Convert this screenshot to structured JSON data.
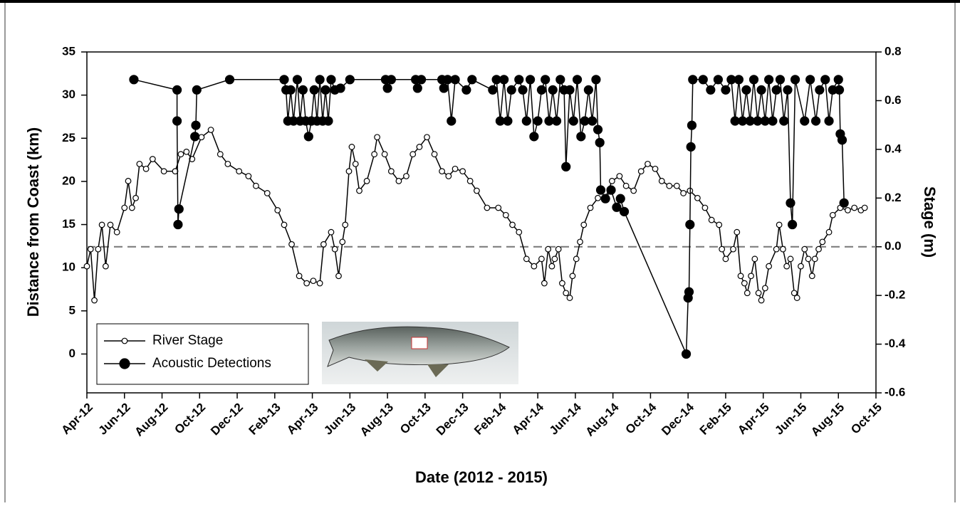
{
  "chart_data": {
    "type": "line",
    "x_label": "Date (2012 - 2015)",
    "y_label": "Distance from Coast (km)",
    "y2_label": "Stage (m)",
    "xlim": [
      0,
      42
    ],
    "xticks": [
      {
        "value": 0,
        "label": "Apr-12"
      },
      {
        "value": 2,
        "label": "Jun-12"
      },
      {
        "value": 4,
        "label": "Aug-12"
      },
      {
        "value": 6,
        "label": "Oct-12"
      },
      {
        "value": 8,
        "label": "Dec-12"
      },
      {
        "value": 10,
        "label": "Feb-13"
      },
      {
        "value": 12,
        "label": "Apr-13"
      },
      {
        "value": 14,
        "label": "Jun-13"
      },
      {
        "value": 16,
        "label": "Aug-13"
      },
      {
        "value": 18,
        "label": "Oct-13"
      },
      {
        "value": 20,
        "label": "Dec-13"
      },
      {
        "value": 22,
        "label": "Feb-14"
      },
      {
        "value": 24,
        "label": "Apr-14"
      },
      {
        "value": 26,
        "label": "Jun-14"
      },
      {
        "value": 28,
        "label": "Aug-14"
      },
      {
        "value": 30,
        "label": "Oct-14"
      },
      {
        "value": 32,
        "label": "Dec-14"
      },
      {
        "value": 34,
        "label": "Feb-15"
      },
      {
        "value": 36,
        "label": "Apr-15"
      },
      {
        "value": 38,
        "label": "Jun-15"
      },
      {
        "value": 40,
        "label": "Aug-15"
      },
      {
        "value": 42,
        "label": "Oct-15"
      }
    ],
    "ylim": [
      -4.5,
      35
    ],
    "yticks": [
      0,
      5,
      10,
      15,
      20,
      25,
      30,
      35
    ],
    "y2lim": [
      -0.6,
      0.8
    ],
    "y2ticks": [
      -0.6,
      -0.4,
      -0.2,
      {
        "value": 0,
        "label": "0.0"
      },
      0.2,
      0.4,
      0.6,
      0.8
    ],
    "reference_line": {
      "axis": "y2",
      "value": 0
    },
    "series": [
      {
        "name": "River Stage",
        "color": "#000000",
        "marker": "open",
        "axis": "y2",
        "x": [
          0,
          0.2,
          0.4,
          0.6,
          0.8,
          1.0,
          1.25,
          1.6,
          2.0,
          2.2,
          2.4,
          2.6,
          2.8,
          3.15,
          3.5,
          4.1,
          4.7,
          5.0,
          5.3,
          5.6,
          6.1,
          6.6,
          7.1,
          7.5,
          8.1,
          8.6,
          9.0,
          9.6,
          10.15,
          10.5,
          10.9,
          11.3,
          11.7,
          12.05,
          12.4,
          12.6,
          13.0,
          13.2,
          13.4,
          13.6,
          13.75,
          13.95,
          14.1,
          14.3,
          14.5,
          14.9,
          15.3,
          15.45,
          15.85,
          16.2,
          16.6,
          17.0,
          17.35,
          17.7,
          18.1,
          18.5,
          18.9,
          19.25,
          19.6,
          20.0,
          20.4,
          20.75,
          21.3,
          21.9,
          22.3,
          22.65,
          23.0,
          23.4,
          23.8,
          24.2,
          24.35,
          24.55,
          24.75,
          24.9,
          25.1,
          25.3,
          25.5,
          25.7,
          25.85,
          26.05,
          26.25,
          26.45,
          26.8,
          27.2,
          27.6,
          27.95,
          28.35,
          28.7,
          29.1,
          29.5,
          29.85,
          30.25,
          30.6,
          31.0,
          31.4,
          31.75,
          32.1,
          32.5,
          32.9,
          33.25,
          33.65,
          33.8,
          34.0,
          34.4,
          34.6,
          34.8,
          35.0,
          35.15,
          35.35,
          35.55,
          35.75,
          35.9,
          36.1,
          36.3,
          36.7,
          36.85,
          37.05,
          37.25,
          37.45,
          37.65,
          37.8,
          38.0,
          38.2,
          38.4,
          38.6,
          38.75,
          38.95,
          39.15,
          39.5,
          39.7,
          40.1,
          40.5,
          40.85,
          41.2,
          41.4
        ],
        "values": [
          -0.08,
          -0.01,
          -0.22,
          -0.01,
          0.09,
          -0.08,
          0.09,
          0.06,
          0.16,
          0.27,
          0.16,
          0.2,
          0.34,
          0.32,
          0.36,
          0.31,
          0.31,
          0.38,
          0.39,
          0.36,
          0.45,
          0.48,
          0.38,
          0.34,
          0.31,
          0.29,
          0.25,
          0.22,
          0.15,
          0.09,
          0.01,
          -0.12,
          -0.15,
          -0.14,
          -0.15,
          0.01,
          0.06,
          -0.01,
          -0.12,
          0.02,
          0.09,
          0.31,
          0.41,
          0.34,
          0.23,
          0.27,
          0.38,
          0.45,
          0.38,
          0.31,
          0.27,
          0.29,
          0.38,
          0.41,
          0.45,
          0.38,
          0.31,
          0.29,
          0.32,
          0.31,
          0.27,
          0.23,
          0.16,
          0.16,
          0.13,
          0.09,
          0.06,
          -0.05,
          -0.08,
          -0.05,
          -0.15,
          -0.01,
          -0.08,
          -0.05,
          -0.01,
          -0.15,
          -0.19,
          -0.21,
          -0.12,
          -0.05,
          0.02,
          0.09,
          0.16,
          0.2,
          0.2,
          0.27,
          0.29,
          0.25,
          0.23,
          0.31,
          0.34,
          0.32,
          0.27,
          0.25,
          0.25,
          0.22,
          0.23,
          0.2,
          0.16,
          0.11,
          0.09,
          -0.01,
          -0.05,
          -0.01,
          0.06,
          -0.12,
          -0.15,
          -0.19,
          -0.12,
          -0.05,
          -0.19,
          -0.22,
          -0.17,
          -0.08,
          -0.01,
          0.09,
          -0.01,
          -0.08,
          -0.05,
          -0.19,
          -0.21,
          -0.08,
          -0.01,
          -0.05,
          -0.12,
          -0.05,
          -0.01,
          0.02,
          0.06,
          0.13,
          0.16,
          0.15,
          0.16,
          0.15,
          0.16
        ]
      },
      {
        "name": "Acoustic Detections",
        "color": "#000000",
        "marker": "filled",
        "axis": "y",
        "x": [
          2.5,
          4.8,
          4.8,
          4.85,
          4.9,
          5.75,
          5.8,
          5.85,
          7.6,
          10.5,
          10.6,
          10.7,
          10.85,
          11.0,
          11.2,
          11.35,
          11.5,
          11.65,
          11.8,
          11.95,
          12.1,
          12.25,
          12.4,
          12.55,
          12.7,
          12.85,
          13.0,
          13.2,
          13.5,
          14.0,
          15.9,
          16.0,
          16.2,
          17.5,
          17.6,
          17.8,
          18.9,
          19.0,
          19.2,
          19.4,
          19.6,
          20.2,
          20.5,
          21.6,
          21.8,
          22.0,
          22.2,
          22.4,
          22.6,
          23.0,
          23.2,
          23.4,
          23.6,
          23.8,
          24.0,
          24.2,
          24.4,
          24.6,
          24.8,
          25.0,
          25.2,
          25.4,
          25.5,
          25.7,
          25.9,
          26.1,
          26.3,
          26.5,
          26.7,
          26.9,
          27.1,
          27.2,
          27.3,
          27.35,
          27.6,
          27.9,
          28.2,
          28.4,
          28.6,
          31.9,
          32.0,
          32.05,
          32.1,
          32.15,
          32.2,
          32.25,
          32.8,
          33.2,
          33.6,
          34.0,
          34.3,
          34.5,
          34.7,
          34.9,
          35.1,
          35.3,
          35.5,
          35.7,
          35.9,
          36.1,
          36.3,
          36.5,
          36.7,
          36.9,
          37.1,
          37.3,
          37.45,
          37.55,
          37.7,
          38.2,
          38.5,
          38.8,
          39.0,
          39.3,
          39.5,
          39.7,
          40.0,
          40.05,
          40.1,
          40.2,
          40.3
        ],
        "values": [
          31.8,
          30.6,
          27,
          15,
          16.8,
          25.2,
          26.5,
          30.6,
          31.8,
          31.8,
          30.6,
          27,
          30.6,
          27,
          31.8,
          27,
          30.6,
          27,
          25.2,
          27,
          30.6,
          27,
          31.8,
          27,
          30.6,
          27,
          31.8,
          30.6,
          30.8,
          31.8,
          31.8,
          30.8,
          31.8,
          31.8,
          30.8,
          31.8,
          31.8,
          30.8,
          31.8,
          27,
          31.8,
          30.6,
          31.8,
          30.6,
          31.8,
          27,
          31.8,
          27,
          30.6,
          31.8,
          30.6,
          27,
          31.8,
          25.2,
          27,
          30.6,
          31.8,
          27,
          30.6,
          27,
          31.8,
          30.6,
          21.7,
          30.6,
          27,
          31.8,
          25.2,
          27,
          30.6,
          27,
          31.8,
          26,
          24.5,
          19,
          18,
          19,
          17,
          18,
          16.5,
          0,
          6.5,
          7.2,
          15,
          24,
          26.5,
          31.8,
          31.8,
          30.6,
          31.8,
          30.6,
          31.8,
          27,
          31.8,
          27,
          30.6,
          27,
          31.8,
          27,
          30.6,
          27,
          31.8,
          27,
          30.6,
          31.8,
          27,
          30.6,
          17.5,
          15,
          31.8,
          27,
          31.8,
          27,
          30.6,
          31.8,
          27,
          30.6,
          31.8,
          30.6,
          25.5,
          24.8,
          17.5
        ]
      }
    ]
  }
}
